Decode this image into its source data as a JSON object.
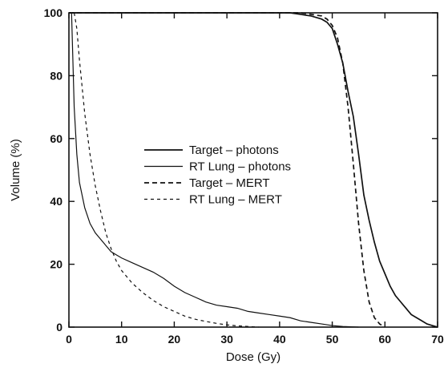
{
  "chart_data": {
    "type": "line",
    "title": "",
    "xlabel": "Dose (Gy)",
    "ylabel": "Volume (%)",
    "xlim": [
      0,
      70
    ],
    "ylim": [
      0,
      100
    ],
    "xticks": [
      0,
      10,
      20,
      30,
      40,
      50,
      60,
      70
    ],
    "yticks": [
      0,
      20,
      40,
      60,
      80,
      100
    ],
    "grid": false,
    "legend_position": "center-left",
    "series": [
      {
        "name": "Target – photons",
        "style": "solid",
        "x": [
          0,
          40,
          42,
          44,
          46,
          48,
          49,
          50,
          51,
          52,
          53,
          54,
          55,
          56,
          57,
          58,
          59,
          60,
          61,
          62,
          63,
          64,
          65,
          66,
          67,
          68,
          69,
          70
        ],
        "y": [
          100,
          100,
          100,
          99.5,
          99,
          98,
          97,
          95,
          90,
          84,
          75,
          67,
          55,
          42,
          34,
          27,
          21,
          17,
          13,
          10,
          8,
          6,
          4,
          3,
          2,
          1,
          0.5,
          0
        ]
      },
      {
        "name": "RT Lung – photons",
        "style": "solid",
        "x": [
          0.5,
          1,
          1.5,
          2,
          3,
          4,
          5,
          6,
          7,
          8,
          9,
          10,
          12,
          14,
          16,
          18,
          20,
          22,
          24,
          26,
          28,
          30,
          32,
          34,
          36,
          38,
          40,
          42,
          44,
          46,
          48,
          50,
          52,
          55
        ],
        "y": [
          100,
          70,
          55,
          46,
          38,
          33,
          30,
          28,
          26,
          24,
          23,
          22,
          20.5,
          19,
          17.5,
          15.5,
          13,
          11,
          9.5,
          8,
          7,
          6.5,
          6,
          5,
          4.5,
          4,
          3.5,
          3,
          2,
          1.5,
          1,
          0.5,
          0.2,
          0
        ]
      },
      {
        "name": "Target – MERT",
        "style": "dashed",
        "x": [
          0,
          40,
          42,
          44,
          46,
          48,
          49,
          50,
          51,
          52,
          53,
          54,
          55,
          56,
          57,
          58,
          59,
          60
        ],
        "y": [
          100,
          100,
          100,
          100,
          99.5,
          99,
          98,
          96,
          92,
          84,
          70,
          52,
          33,
          18,
          8,
          3,
          1,
          0
        ]
      },
      {
        "name": "RT Lung – MERT",
        "style": "dashed",
        "x": [
          1,
          1.5,
          2,
          3,
          4,
          5,
          6,
          7,
          8,
          9,
          10,
          11,
          12,
          14,
          16,
          18,
          20,
          22,
          24,
          26,
          28,
          30,
          32,
          34,
          36
        ],
        "y": [
          100,
          95,
          85,
          68,
          55,
          45,
          37,
          30,
          25,
          21,
          18,
          16,
          14,
          11,
          8.5,
          6.5,
          5,
          3.5,
          2.5,
          1.8,
          1.2,
          0.7,
          0.4,
          0.2,
          0
        ]
      }
    ]
  }
}
